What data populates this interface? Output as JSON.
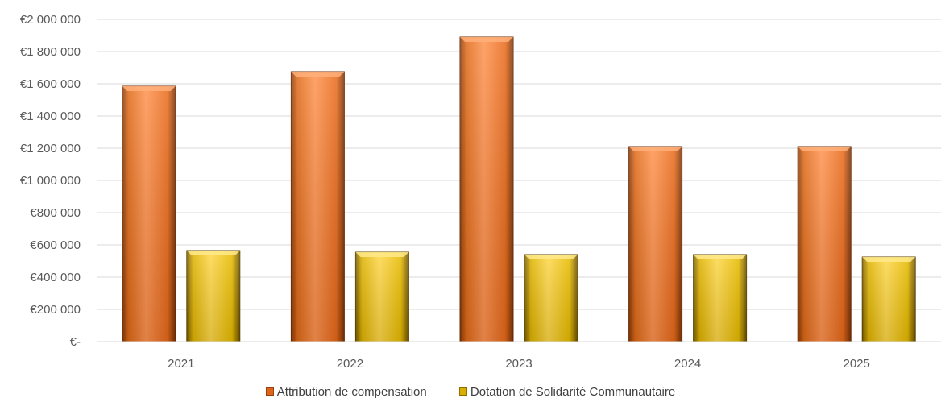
{
  "chart_data": {
    "type": "bar",
    "categories": [
      "2021",
      "2022",
      "2023",
      "2024",
      "2025"
    ],
    "series": [
      {
        "name": "Attribution de compensation",
        "values": [
          1585000,
          1675000,
          1890000,
          1210000,
          1210000
        ],
        "color": "#F47A1F"
      },
      {
        "name": "Dotation de Solidarité Communautaire",
        "values": [
          565000,
          555000,
          540000,
          540000,
          525000
        ],
        "color": "#F5C400"
      }
    ],
    "yticks": [
      0,
      200000,
      400000,
      600000,
      800000,
      1000000,
      1200000,
      1400000,
      1600000,
      1800000,
      2000000
    ],
    "ytick_labels": [
      "€-",
      "€200 000",
      "€400 000",
      "€600 000",
      "€800 000",
      "€1 000 000",
      "€1 200 000",
      "€1 400 000",
      "€1 600 000",
      "€1 800 000",
      "€2 000 000"
    ],
    "ylim": [
      0,
      2000000
    ],
    "grid": true,
    "legend_position": "bottom",
    "title": "",
    "xlabel": "",
    "ylabel": ""
  }
}
